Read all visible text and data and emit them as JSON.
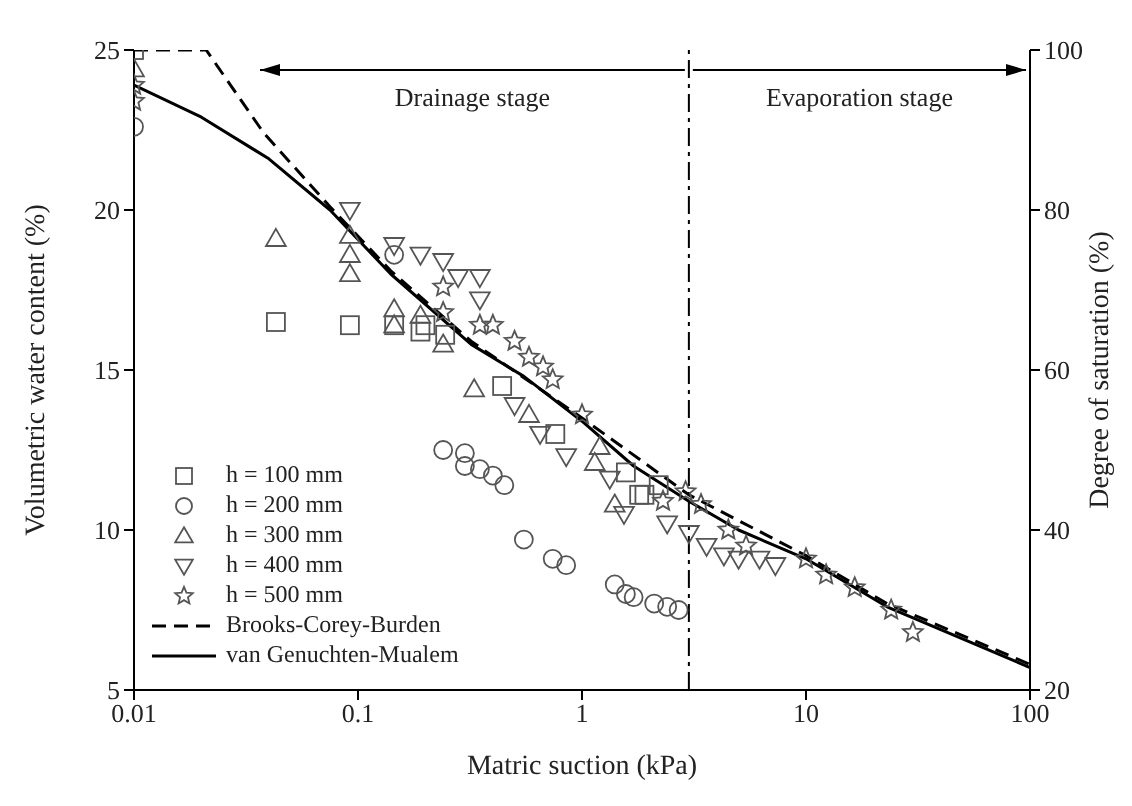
{
  "chart_data": {
    "type": "scatter",
    "xlabel": "Matric suction (kPa)",
    "ylabel": "Volumetric water content (%)",
    "y2label": "Degree of saturation (%)",
    "log": "x",
    "xlim": [
      0.01,
      100
    ],
    "xticks": [
      0.01,
      0.1,
      1,
      10,
      100
    ],
    "ylim": [
      5,
      25
    ],
    "yticks": [
      5,
      10,
      15,
      20,
      25
    ],
    "y2lim": [
      20,
      100
    ],
    "y2ticks": [
      20,
      40,
      60,
      80,
      100
    ],
    "grid": false,
    "legend": "bottom left",
    "annotations": [
      "Drainage stage",
      "Evaporation stage"
    ],
    "ref_lines": [
      {
        "axis": "x",
        "value": 3
      }
    ],
    "series": [
      {
        "name": "h = 100 mm",
        "type": "scatter",
        "marker": "square",
        "color": "#555555",
        "x": [
          0.01,
          0.043,
          0.092,
          0.145,
          0.19,
          0.2,
          0.245,
          0.44,
          0.76,
          1.57,
          1.8,
          1.9,
          2.2
        ],
        "values": [
          25.0,
          16.5,
          16.4,
          16.4,
          16.2,
          16.4,
          16.1,
          14.5,
          13.0,
          11.8,
          11.1,
          11.1,
          11.4
        ]
      },
      {
        "name": "h = 200 mm",
        "type": "scatter",
        "marker": "circle",
        "color": "#555555",
        "x": [
          0.01,
          0.145,
          0.24,
          0.3,
          0.3,
          0.35,
          0.4,
          0.45,
          0.55,
          0.74,
          0.85,
          1.4,
          1.57,
          1.7,
          2.1,
          2.4,
          2.7
        ],
        "values": [
          22.6,
          18.6,
          12.5,
          12.4,
          12.0,
          11.9,
          11.7,
          11.4,
          9.7,
          9.1,
          8.9,
          8.3,
          8.0,
          7.9,
          7.7,
          7.6,
          7.5
        ]
      },
      {
        "name": "h = 300 mm",
        "type": "scatter",
        "marker": "triangle",
        "color": "#555555",
        "x": [
          0.01,
          0.043,
          0.092,
          0.092,
          0.092,
          0.145,
          0.145,
          0.19,
          0.24,
          0.33,
          0.58,
          1.14,
          1.2,
          1.4
        ],
        "values": [
          24.4,
          19.1,
          19.2,
          18.6,
          18.0,
          16.9,
          16.4,
          16.7,
          15.8,
          14.4,
          13.6,
          12.1,
          12.6,
          10.8
        ]
      },
      {
        "name": "h = 400 mm",
        "type": "scatter",
        "marker": "triangle-down",
        "color": "#555555",
        "x": [
          0.092,
          0.145,
          0.19,
          0.24,
          0.28,
          0.35,
          0.35,
          0.5,
          0.65,
          0.85,
          1.33,
          1.54,
          2.4,
          3.0,
          3.6,
          4.3,
          5.0,
          6.2,
          7.3
        ],
        "values": [
          20.0,
          18.9,
          18.6,
          18.4,
          17.9,
          17.9,
          17.2,
          13.9,
          13.0,
          12.3,
          11.6,
          10.5,
          10.2,
          9.9,
          9.5,
          9.2,
          9.1,
          9.1,
          8.9
        ]
      },
      {
        "name": "h = 500 mm",
        "type": "scatter",
        "marker": "star",
        "color": "#555555",
        "x": [
          0.01,
          0.01,
          0.24,
          0.24,
          0.35,
          0.4,
          0.5,
          0.58,
          0.67,
          0.74,
          1.0,
          2.3,
          2.9,
          3.4,
          4.5,
          5.4,
          10,
          12.3,
          16.5,
          24,
          30
        ],
        "values": [
          23.9,
          23.4,
          17.6,
          16.8,
          16.4,
          16.4,
          15.9,
          15.4,
          15.1,
          14.7,
          13.6,
          10.9,
          11.2,
          10.8,
          10.0,
          9.5,
          9.1,
          8.6,
          8.2,
          7.5,
          6.8
        ]
      },
      {
        "name": "Brooks-Corey-Burden",
        "type": "line",
        "marker": "none",
        "line_style": "dashed",
        "color": "#000000",
        "x": [
          0.01,
          0.021,
          0.038,
          0.075,
          0.14,
          0.32,
          1,
          3,
          10,
          23,
          50,
          100
        ],
        "values": [
          25,
          25,
          22.4,
          20.1,
          18.1,
          15.9,
          13.5,
          11.1,
          9.2,
          7.7,
          6.7,
          5.8
        ]
      },
      {
        "name": "van Genuchten-Mualem",
        "type": "line",
        "marker": "none",
        "line_style": "solid",
        "color": "#000000",
        "x": [
          0.01,
          0.02,
          0.04,
          0.075,
          0.14,
          0.32,
          0.55,
          1,
          1.7,
          3,
          5,
          10,
          23,
          50,
          100
        ],
        "values": [
          23.9,
          22.9,
          21.6,
          20.0,
          18.0,
          15.8,
          14.8,
          13.4,
          12.0,
          10.9,
          10.0,
          9.1,
          7.6,
          6.6,
          5.7
        ]
      }
    ]
  }
}
